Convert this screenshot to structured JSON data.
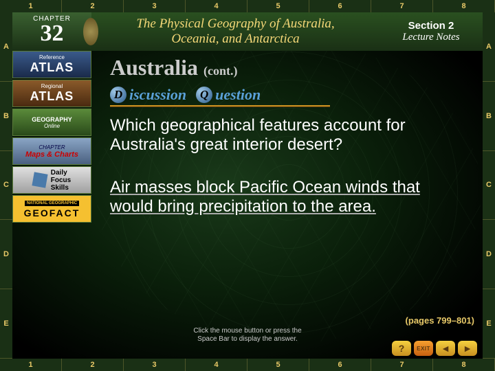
{
  "ruler": {
    "top": [
      "1",
      "2",
      "3",
      "4",
      "5",
      "6",
      "7",
      "8"
    ],
    "side": [
      "A",
      "B",
      "C",
      "D",
      "E"
    ]
  },
  "header": {
    "chapter_label": "CHAPTER",
    "chapter_number": "32",
    "title_line1": "The Physical Geography of Australia,",
    "title_line2": "Oceania, and Antarctica",
    "section_label": "Section 2",
    "section_sub": "Lecture Notes"
  },
  "sidebar": {
    "atlas_ref_sub": "Reference",
    "atlas_ref": "ATLAS",
    "atlas_reg_sub": "Regional",
    "atlas_reg": "ATLAS",
    "geo_top": "GEOGRAPHY",
    "geo_sub": "Online",
    "charts_sub": "CHAPTER",
    "charts": "Maps & Charts",
    "dfs_l1": "Daily",
    "dfs_l2": "Focus",
    "dfs_l3": "Skills",
    "geofact_ng": "NATIONAL GEOGRAPHIC",
    "geofact": "GEOFACT"
  },
  "content": {
    "heading_main": "Australia ",
    "heading_sub": "(cont.)",
    "dq_initial_d": "D",
    "dq_word1": "iscussion",
    "dq_initial_q": "Q",
    "dq_word2": "uestion",
    "question": "Which geographical features account for Australia's great interior desert?",
    "answer": "Air masses block Pacific Ocean winds that would bring precipitation to the area."
  },
  "footer": {
    "pages": "(pages 799–801)",
    "hint_l1": "Click the mouse button or press the",
    "hint_l2": "Space Bar to display the answer.",
    "nav_help": "?",
    "nav_exit": "EXIT",
    "nav_prev": "◄",
    "nav_next": "►"
  },
  "colors": {
    "gold": "#e8c968",
    "blue": "#5aa0d8",
    "underline": "#c89020"
  }
}
